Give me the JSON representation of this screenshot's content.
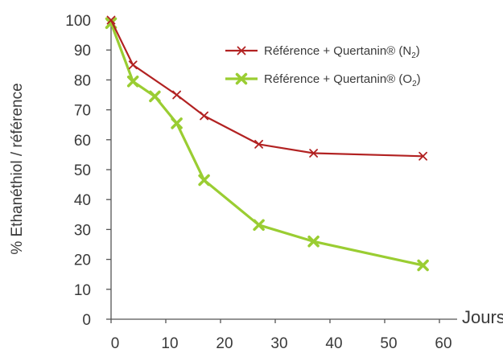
{
  "chart_data": {
    "type": "line",
    "title": "",
    "xlabel": "Jours",
    "ylabel": "% Ethanéthiol / référence",
    "xlim": [
      0,
      60
    ],
    "ylim": [
      0,
      100
    ],
    "xticks": [
      0,
      10,
      20,
      30,
      40,
      50,
      60
    ],
    "yticks": [
      0,
      10,
      20,
      30,
      40,
      50,
      60,
      70,
      80,
      90,
      100
    ],
    "grid": false,
    "legend_position": "top-right",
    "series": [
      {
        "name_main": "Référence + Quertanin® (N",
        "name_sub": "2",
        "name_end": ")",
        "color": "#b22222",
        "marker": "x",
        "x": [
          0,
          4,
          12,
          17,
          27,
          37,
          57
        ],
        "y": [
          100,
          85,
          75,
          68,
          58.5,
          55.5,
          54.5
        ]
      },
      {
        "name_main": "Référence + Quertanin® (O",
        "name_sub": "2",
        "name_end": ")",
        "color": "#9ACD32",
        "marker": "x",
        "x": [
          0,
          4,
          8,
          12,
          17,
          27,
          37,
          57
        ],
        "y": [
          99,
          79.5,
          74.5,
          65.5,
          46.5,
          31.5,
          26,
          18
        ]
      }
    ]
  }
}
